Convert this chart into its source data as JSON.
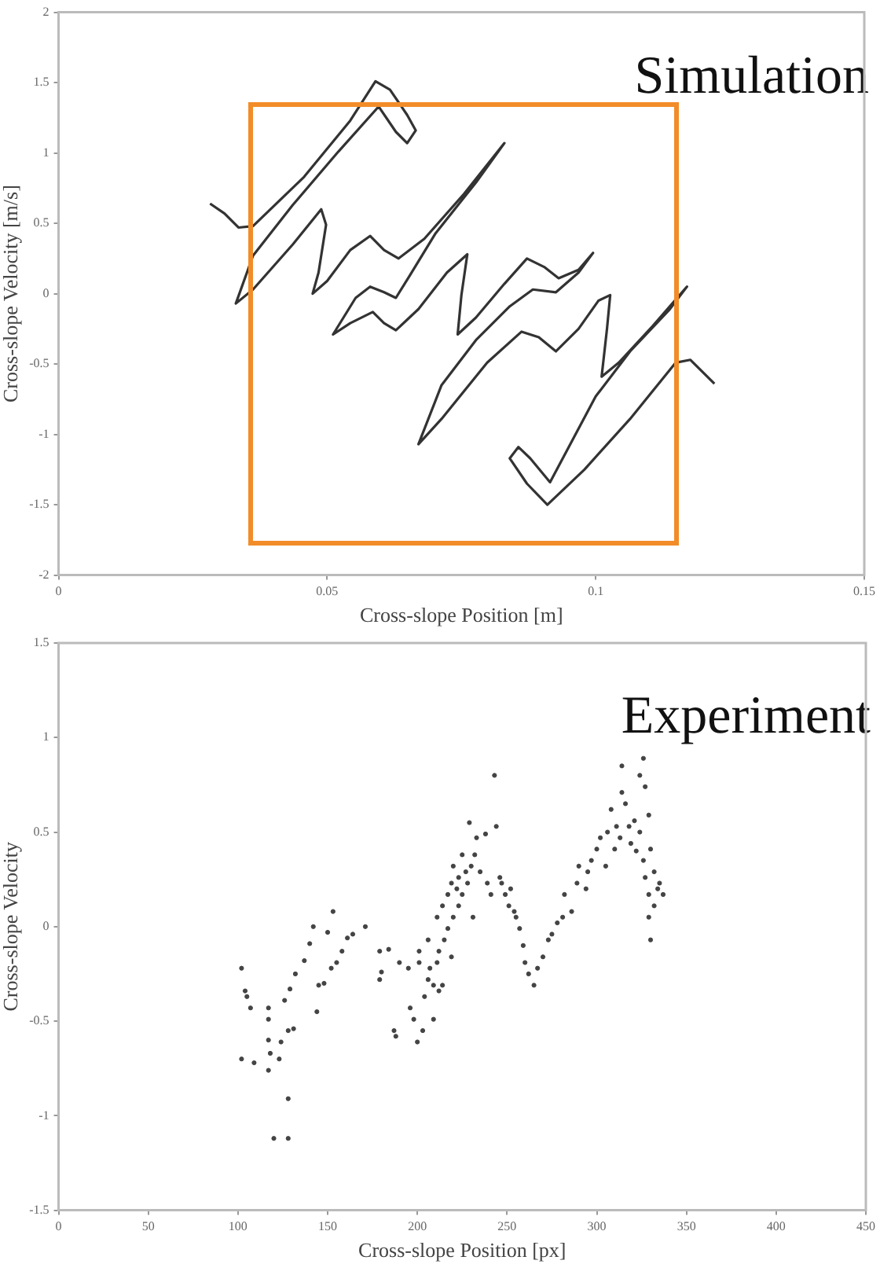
{
  "chart_data": [
    {
      "type": "line",
      "title": "Simulation",
      "xlabel": "Cross-slope Position [m]",
      "ylabel": "Cross-slope Velocity [m/s]",
      "xlim": [
        0,
        0.15
      ],
      "xticks": [
        0,
        0.05,
        0.1,
        0.15
      ],
      "ylim": [
        -2,
        2
      ],
      "yticks": [
        -2,
        -1.5,
        -1,
        -0.5,
        0,
        0.5,
        1,
        1.5,
        2
      ],
      "marker": "none",
      "line_style": "solid",
      "series": [
        {
          "color": "#333333",
          "x": [
            0.0282,
            0.0309,
            0.0335,
            0.0362,
            0.0457,
            0.0543,
            0.059,
            0.0617,
            0.0649,
            0.0665,
            0.0649,
            0.0628,
            0.0596,
            0.0521,
            0.0436,
            0.0362,
            0.033,
            0.0362,
            0.0436,
            0.0489,
            0.0498,
            0.0484,
            0.0473,
            0.05,
            0.0543,
            0.058,
            0.0606,
            0.0633,
            0.0681,
            0.0755,
            0.083,
            0.0777,
            0.0702,
            0.0654,
            0.0628,
            0.0606,
            0.058,
            0.0553,
            0.0511,
            0.0543,
            0.0585,
            0.0606,
            0.0628,
            0.067,
            0.0723,
            0.0761,
            0.075,
            0.0743,
            0.0777,
            0.083,
            0.0872,
            0.0904,
            0.0931,
            0.0968,
            0.0995,
            0.0968,
            0.0926,
            0.0883,
            0.084,
            0.0777,
            0.0713,
            0.067,
            0.0713,
            0.0798,
            0.0862,
            0.0894,
            0.0926,
            0.0968,
            0.1005,
            0.1027,
            0.1021,
            0.1011,
            0.1043,
            0.1106,
            0.117,
            0.1138,
            0.1064,
            0.1,
            0.0915,
            0.0878,
            0.0856,
            0.084,
            0.0872,
            0.091,
            0.0979,
            0.1064,
            0.1149,
            0.1176,
            0.1221
          ],
          "values": [
            0.64,
            0.57,
            0.47,
            0.48,
            0.83,
            1.23,
            1.51,
            1.45,
            1.27,
            1.16,
            1.07,
            1.15,
            1.33,
            1.01,
            0.63,
            0.27,
            -0.07,
            0.03,
            0.35,
            0.6,
            0.49,
            0.15,
            0.0,
            0.09,
            0.31,
            0.41,
            0.31,
            0.25,
            0.39,
            0.71,
            1.07,
            0.79,
            0.43,
            0.13,
            -0.03,
            0.01,
            0.05,
            -0.03,
            -0.29,
            -0.21,
            -0.13,
            -0.21,
            -0.26,
            -0.11,
            0.15,
            0.28,
            -0.01,
            -0.29,
            -0.17,
            0.07,
            0.25,
            0.19,
            0.11,
            0.17,
            0.29,
            0.15,
            0.01,
            0.03,
            -0.09,
            -0.33,
            -0.65,
            -1.07,
            -0.89,
            -0.49,
            -0.27,
            -0.31,
            -0.41,
            -0.25,
            -0.05,
            -0.01,
            -0.25,
            -0.59,
            -0.49,
            -0.23,
            0.05,
            -0.11,
            -0.41,
            -0.73,
            -1.34,
            -1.17,
            -1.09,
            -1.17,
            -1.35,
            -1.5,
            -1.25,
            -0.89,
            -0.49,
            -0.47,
            -0.64
          ]
        }
      ]
    },
    {
      "type": "scatter",
      "title": "Experiment",
      "xlabel": "Cross-slope Position [px]",
      "ylabel": "Cross-slope Velocity",
      "xlim": [
        0,
        450
      ],
      "xticks": [
        0,
        50,
        100,
        150,
        200,
        250,
        300,
        350,
        400,
        450
      ],
      "ylim": [
        -1.5,
        1.5
      ],
      "yticks": [
        -1.5,
        -1,
        -0.5,
        0,
        0.5,
        1,
        1.5
      ],
      "marker": "circle",
      "series": [
        {
          "color": "#444444",
          "x": [
            102,
            104,
            105,
            107,
            102,
            109,
            117,
            117,
            117,
            118,
            117,
            120,
            123,
            124,
            126,
            129,
            128,
            128,
            128,
            131,
            132,
            137,
            140,
            142,
            144,
            145,
            148,
            150,
            153,
            152,
            155,
            158,
            161,
            164,
            171,
            179,
            180,
            179,
            184,
            187,
            188,
            190,
            195,
            196,
            198,
            200,
            201,
            201,
            203,
            204,
            206,
            206,
            207,
            209,
            209,
            211,
            211,
            212,
            212,
            214,
            214,
            215,
            217,
            217,
            219,
            219,
            220,
            220,
            222,
            223,
            223,
            225,
            225,
            227,
            228,
            229,
            230,
            231,
            232,
            233,
            235,
            238,
            239,
            241,
            243,
            244,
            246,
            247,
            249,
            251,
            252,
            254,
            255,
            257,
            259,
            260,
            262,
            265,
            267,
            270,
            273,
            275,
            278,
            281,
            282,
            286,
            289,
            290,
            294,
            295,
            297,
            300,
            302,
            305,
            306,
            308,
            310,
            311,
            313,
            314,
            314,
            316,
            318,
            319,
            321,
            322,
            324,
            324,
            326,
            327,
            326,
            327,
            329,
            329,
            330,
            332,
            332,
            334,
            335,
            337,
            330,
            329
          ],
          "values": [
            -0.22,
            -0.34,
            -0.37,
            -0.43,
            -0.7,
            -0.72,
            -0.43,
            -0.49,
            -0.6,
            -0.67,
            -0.76,
            -1.12,
            -0.7,
            -0.61,
            -0.39,
            -0.33,
            -0.55,
            -0.91,
            -1.12,
            -0.54,
            -0.25,
            -0.18,
            -0.09,
            0.0,
            -0.45,
            -0.31,
            -0.3,
            -0.03,
            0.08,
            -0.22,
            -0.19,
            -0.13,
            -0.06,
            -0.04,
            0.0,
            -0.13,
            -0.24,
            -0.28,
            -0.12,
            -0.55,
            -0.58,
            -0.19,
            -0.22,
            -0.43,
            -0.49,
            -0.61,
            -0.19,
            -0.13,
            -0.55,
            -0.37,
            -0.07,
            -0.28,
            -0.22,
            -0.49,
            -0.31,
            0.05,
            -0.19,
            -0.13,
            -0.34,
            -0.31,
            0.11,
            -0.07,
            0.17,
            -0.01,
            -0.16,
            0.23,
            0.05,
            0.32,
            0.2,
            0.11,
            0.26,
            0.17,
            0.38,
            0.29,
            0.23,
            0.55,
            0.32,
            0.05,
            0.38,
            0.47,
            0.29,
            0.49,
            0.23,
            0.17,
            0.8,
            0.53,
            0.26,
            0.23,
            0.17,
            0.11,
            0.2,
            0.08,
            0.05,
            -0.01,
            -0.1,
            -0.19,
            -0.25,
            -0.31,
            -0.22,
            -0.16,
            -0.07,
            -0.04,
            0.02,
            0.05,
            0.17,
            0.08,
            0.23,
            0.32,
            0.2,
            0.29,
            0.35,
            0.41,
            0.47,
            0.32,
            0.5,
            0.62,
            0.41,
            0.53,
            0.47,
            0.71,
            0.85,
            0.65,
            0.53,
            0.44,
            0.56,
            0.4,
            0.5,
            0.8,
            0.89,
            0.74,
            0.35,
            0.26,
            0.17,
            0.05,
            -0.07,
            0.29,
            0.11,
            0.2,
            0.23,
            0.17,
            0.41,
            0.59
          ]
        }
      ]
    }
  ]
}
